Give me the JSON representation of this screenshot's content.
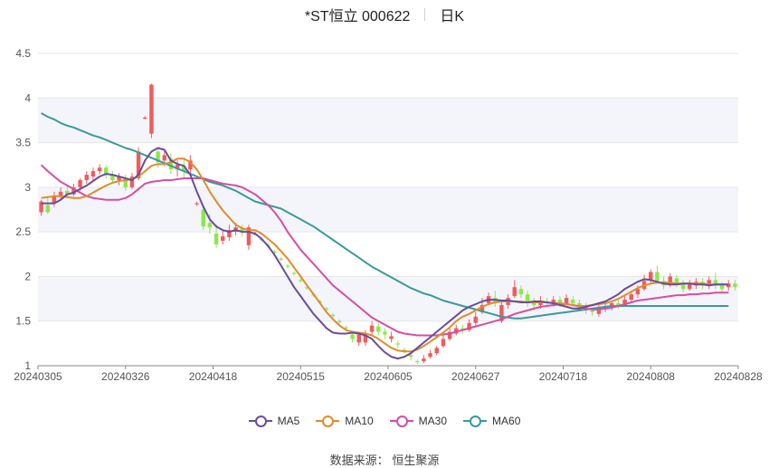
{
  "title": "*ST恒立 000622",
  "subtitle": "日K",
  "source_label": "数据来源：",
  "source_name": "恒生聚源",
  "colors": {
    "up": "#ef5c5c",
    "down": "#8ee64c",
    "ma5": "#6a4c9c",
    "ma10": "#e08c2c",
    "ma30": "#d44fa6",
    "ma60": "#3a9a9a",
    "grid": "#e6e6e6",
    "band": "#f4f5fb"
  },
  "chart_data": {
    "type": "candlestick",
    "ylim": [
      1,
      4.5
    ],
    "yticks": [
      "1",
      "1.5",
      "2",
      "2.5",
      "3",
      "3.5",
      "4",
      "4.5"
    ],
    "xlabels": [
      "20240305",
      "20240326",
      "20240418",
      "20240515",
      "20240605",
      "20240627",
      "20240718",
      "20240808",
      "20240828"
    ],
    "legend": [
      "MA5",
      "MA10",
      "MA30",
      "MA60"
    ],
    "candles": [
      [
        2.72,
        2.84,
        2.86,
        2.68
      ],
      [
        2.8,
        2.72,
        2.88,
        2.7
      ],
      [
        2.82,
        2.9,
        2.95,
        2.78
      ],
      [
        2.9,
        2.95,
        3.0,
        2.86
      ],
      [
        2.96,
        2.92,
        3.03,
        2.88
      ],
      [
        2.92,
        3.0,
        3.04,
        2.9
      ],
      [
        3.0,
        3.08,
        3.1,
        2.96
      ],
      [
        3.08,
        3.14,
        3.18,
        3.04
      ],
      [
        3.12,
        3.18,
        3.22,
        3.08
      ],
      [
        3.18,
        3.22,
        3.26,
        3.14
      ],
      [
        3.22,
        3.14,
        3.25,
        3.1
      ],
      [
        3.14,
        3.08,
        3.18,
        3.04
      ],
      [
        3.08,
        3.12,
        3.16,
        3.02
      ],
      [
        3.1,
        3.0,
        3.14,
        2.96
      ],
      [
        3.0,
        3.12,
        3.16,
        2.98
      ],
      [
        3.1,
        3.4,
        3.45,
        3.08
      ],
      [
        3.78,
        3.78,
        3.8,
        3.76
      ],
      [
        3.6,
        4.15,
        4.16,
        3.55
      ],
      [
        3.4,
        3.28,
        3.45,
        3.22
      ],
      [
        3.3,
        3.36,
        3.42,
        3.24
      ],
      [
        3.32,
        3.2,
        3.38,
        3.15
      ],
      [
        3.2,
        3.25,
        3.3,
        3.12
      ],
      [
        3.24,
        3.18,
        3.32,
        3.1
      ],
      [
        3.2,
        3.3,
        3.36,
        3.15
      ],
      [
        2.82,
        2.82,
        2.84,
        2.79
      ],
      [
        2.75,
        2.56,
        2.78,
        2.52
      ],
      [
        2.6,
        2.55,
        2.7,
        2.48
      ],
      [
        2.48,
        2.36,
        2.58,
        2.32
      ],
      [
        2.4,
        2.45,
        2.52,
        2.36
      ],
      [
        2.44,
        2.52,
        2.58,
        2.4
      ],
      [
        2.5,
        2.55,
        2.6,
        2.46
      ],
      [
        2.54,
        2.5,
        2.58,
        2.45
      ],
      [
        2.35,
        2.55,
        2.58,
        2.3
      ],
      [
        2.48,
        2.48,
        2.5,
        2.46
      ],
      [
        2.42,
        2.41,
        2.44,
        2.39
      ],
      [
        2.35,
        2.34,
        2.37,
        2.32
      ],
      [
        2.28,
        2.27,
        2.3,
        2.25
      ],
      [
        2.2,
        2.19,
        2.22,
        2.17
      ],
      [
        2.12,
        2.11,
        2.14,
        2.09
      ],
      [
        2.04,
        2.03,
        2.06,
        2.01
      ],
      [
        1.96,
        1.95,
        1.98,
        1.93
      ],
      [
        1.88,
        1.87,
        1.9,
        1.85
      ],
      [
        1.8,
        1.79,
        1.82,
        1.77
      ],
      [
        1.72,
        1.71,
        1.74,
        1.69
      ],
      [
        1.64,
        1.63,
        1.66,
        1.61
      ],
      [
        1.57,
        1.56,
        1.59,
        1.54
      ],
      [
        1.5,
        1.49,
        1.52,
        1.47
      ],
      [
        1.43,
        1.42,
        1.45,
        1.4
      ],
      [
        1.35,
        1.3,
        1.38,
        1.26
      ],
      [
        1.26,
        1.35,
        1.38,
        1.22
      ],
      [
        1.26,
        1.35,
        1.4,
        1.22
      ],
      [
        1.38,
        1.45,
        1.5,
        1.35
      ],
      [
        1.44,
        1.38,
        1.48,
        1.34
      ],
      [
        1.38,
        1.35,
        1.42,
        1.3
      ],
      [
        1.3,
        1.33,
        1.38,
        1.26
      ],
      [
        1.25,
        1.24,
        1.28,
        1.2
      ],
      [
        1.18,
        1.17,
        1.2,
        1.14
      ],
      [
        1.12,
        1.1,
        1.14,
        1.06
      ],
      [
        1.05,
        1.04,
        1.07,
        1.02
      ],
      [
        1.05,
        1.08,
        1.12,
        1.03
      ],
      [
        1.1,
        1.14,
        1.18,
        1.08
      ],
      [
        1.14,
        1.2,
        1.22,
        1.12
      ],
      [
        1.22,
        1.3,
        1.34,
        1.2
      ],
      [
        1.3,
        1.38,
        1.42,
        1.28
      ],
      [
        1.36,
        1.42,
        1.46,
        1.34
      ],
      [
        1.42,
        1.4,
        1.46,
        1.36
      ],
      [
        1.4,
        1.48,
        1.52,
        1.38
      ],
      [
        1.48,
        1.55,
        1.6,
        1.45
      ],
      [
        1.6,
        1.68,
        1.76,
        1.58
      ],
      [
        1.7,
        1.78,
        1.82,
        1.68
      ],
      [
        1.76,
        1.7,
        1.84,
        1.66
      ],
      [
        1.5,
        1.68,
        1.72,
        1.48
      ],
      [
        1.68,
        1.76,
        1.8,
        1.64
      ],
      [
        1.78,
        1.88,
        1.96,
        1.76
      ],
      [
        1.86,
        1.8,
        1.9,
        1.76
      ],
      [
        1.8,
        1.7,
        1.84,
        1.66
      ],
      [
        1.72,
        1.68,
        1.76,
        1.62
      ],
      [
        1.68,
        1.72,
        1.78,
        1.64
      ],
      [
        1.72,
        1.7,
        1.76,
        1.66
      ],
      [
        1.7,
        1.74,
        1.78,
        1.66
      ],
      [
        1.74,
        1.7,
        1.78,
        1.66
      ],
      [
        1.7,
        1.76,
        1.8,
        1.68
      ],
      [
        1.74,
        1.7,
        1.78,
        1.66
      ],
      [
        1.7,
        1.66,
        1.74,
        1.62
      ],
      [
        1.66,
        1.62,
        1.7,
        1.58
      ],
      [
        1.62,
        1.6,
        1.66,
        1.56
      ],
      [
        1.58,
        1.65,
        1.68,
        1.55
      ],
      [
        1.64,
        1.66,
        1.7,
        1.6
      ],
      [
        1.66,
        1.7,
        1.72,
        1.62
      ],
      [
        1.7,
        1.68,
        1.74,
        1.64
      ],
      [
        1.68,
        1.74,
        1.78,
        1.66
      ],
      [
        1.74,
        1.8,
        1.84,
        1.7
      ],
      [
        1.8,
        1.86,
        1.9,
        1.76
      ],
      [
        1.86,
        1.95,
        2.02,
        1.84
      ],
      [
        1.96,
        2.05,
        2.08,
        1.92
      ],
      [
        2.05,
        1.95,
        2.12,
        1.92
      ],
      [
        1.95,
        1.9,
        2.0,
        1.86
      ],
      [
        1.92,
        2.0,
        2.04,
        1.88
      ],
      [
        1.98,
        1.92,
        2.02,
        1.88
      ],
      [
        1.92,
        1.86,
        1.96,
        1.82
      ],
      [
        1.86,
        1.92,
        1.96,
        1.84
      ],
      [
        1.9,
        1.94,
        1.98,
        1.86
      ],
      [
        1.94,
        1.9,
        1.98,
        1.86
      ],
      [
        1.9,
        1.96,
        2.0,
        1.86
      ],
      [
        1.96,
        1.9,
        2.04,
        1.86
      ],
      [
        1.9,
        1.86,
        1.94,
        1.82
      ],
      [
        1.88,
        1.92,
        1.96,
        1.84
      ],
      [
        1.92,
        1.88,
        1.96,
        1.84
      ]
    ],
    "ma5": [
      2.82,
      2.82,
      2.82,
      2.86,
      2.92,
      2.94,
      2.98,
      3.02,
      3.07,
      3.12,
      3.15,
      3.14,
      3.12,
      3.1,
      3.08,
      3.14,
      3.3,
      3.4,
      3.44,
      3.42,
      3.3,
      3.26,
      3.24,
      3.14,
      2.95,
      2.78,
      2.64,
      2.56,
      2.52,
      2.5,
      2.52,
      2.5,
      2.5,
      2.48,
      2.42,
      2.34,
      2.24,
      2.12,
      2.0,
      1.88,
      1.78,
      1.68,
      1.58,
      1.5,
      1.42,
      1.37,
      1.36,
      1.36,
      1.37,
      1.36,
      1.34,
      1.3,
      1.22,
      1.15,
      1.1,
      1.08,
      1.1,
      1.14,
      1.2,
      1.26,
      1.32,
      1.38,
      1.44,
      1.5,
      1.56,
      1.62,
      1.66,
      1.69,
      1.72,
      1.74,
      1.74,
      1.73,
      1.73,
      1.72,
      1.71,
      1.71,
      1.72,
      1.72,
      1.71,
      1.7,
      1.68,
      1.66,
      1.64,
      1.64,
      1.66,
      1.68,
      1.7,
      1.72,
      1.76,
      1.8,
      1.86,
      1.9,
      1.94,
      1.97,
      1.96,
      1.94,
      1.92,
      1.91,
      1.91,
      1.92,
      1.92,
      1.91,
      1.91,
      1.9,
      1.91,
      1.91,
      1.91
    ],
    "ma10": [
      2.88,
      2.89,
      2.9,
      2.9,
      2.89,
      2.88,
      2.88,
      2.9,
      2.94,
      2.98,
      3.02,
      3.05,
      3.07,
      3.08,
      3.09,
      3.12,
      3.18,
      3.24,
      3.26,
      3.26,
      3.28,
      3.32,
      3.32,
      3.28,
      3.2,
      3.08,
      2.95,
      2.84,
      2.74,
      2.66,
      2.58,
      2.54,
      2.52,
      2.52,
      2.48,
      2.42,
      2.36,
      2.28,
      2.2,
      2.1,
      2.0,
      1.9,
      1.8,
      1.7,
      1.6,
      1.52,
      1.45,
      1.4,
      1.38,
      1.37,
      1.36,
      1.34,
      1.3,
      1.25,
      1.2,
      1.17,
      1.16,
      1.16,
      1.18,
      1.22,
      1.27,
      1.32,
      1.37,
      1.43,
      1.5,
      1.55,
      1.58,
      1.62,
      1.66,
      1.69,
      1.71,
      1.72,
      1.72,
      1.72,
      1.72,
      1.71,
      1.71,
      1.71,
      1.71,
      1.7,
      1.7,
      1.69,
      1.68,
      1.67,
      1.67,
      1.68,
      1.69,
      1.7,
      1.72,
      1.75,
      1.79,
      1.83,
      1.87,
      1.9,
      1.92,
      1.93,
      1.93,
      1.93,
      1.92,
      1.92,
      1.92,
      1.92,
      1.92,
      1.91,
      1.91,
      1.91,
      1.91
    ],
    "ma30": [
      3.25,
      3.18,
      3.12,
      3.06,
      3.02,
      2.98,
      2.94,
      2.9,
      2.88,
      2.87,
      2.86,
      2.86,
      2.86,
      2.88,
      2.92,
      2.98,
      3.04,
      3.06,
      3.07,
      3.08,
      3.08,
      3.09,
      3.1,
      3.1,
      3.1,
      3.1,
      3.08,
      3.06,
      3.04,
      3.03,
      3.02,
      3.0,
      2.96,
      2.92,
      2.86,
      2.8,
      2.72,
      2.62,
      2.5,
      2.4,
      2.3,
      2.22,
      2.14,
      2.06,
      1.98,
      1.9,
      1.84,
      1.78,
      1.72,
      1.66,
      1.6,
      1.54,
      1.5,
      1.46,
      1.42,
      1.38,
      1.36,
      1.35,
      1.34,
      1.34,
      1.34,
      1.34,
      1.35,
      1.36,
      1.38,
      1.4,
      1.42,
      1.44,
      1.46,
      1.48,
      1.5,
      1.52,
      1.55,
      1.58,
      1.6,
      1.62,
      1.64,
      1.66,
      1.67,
      1.68,
      1.69,
      1.69,
      1.68,
      1.66,
      1.64,
      1.63,
      1.63,
      1.64,
      1.65,
      1.67,
      1.69,
      1.71,
      1.73,
      1.74,
      1.75,
      1.76,
      1.77,
      1.78,
      1.79,
      1.79,
      1.8,
      1.8,
      1.81,
      1.81,
      1.82,
      1.82,
      1.82
    ],
    "ma60": [
      3.83,
      3.79,
      3.76,
      3.72,
      3.69,
      3.67,
      3.64,
      3.61,
      3.58,
      3.56,
      3.53,
      3.5,
      3.47,
      3.44,
      3.42,
      3.39,
      3.36,
      3.33,
      3.3,
      3.27,
      3.24,
      3.21,
      3.18,
      3.15,
      3.12,
      3.09,
      3.06,
      3.04,
      3.02,
      2.99,
      2.96,
      2.92,
      2.88,
      2.84,
      2.82,
      2.8,
      2.78,
      2.76,
      2.72,
      2.68,
      2.64,
      2.6,
      2.56,
      2.51,
      2.46,
      2.41,
      2.36,
      2.31,
      2.26,
      2.21,
      2.16,
      2.11,
      2.07,
      2.03,
      1.99,
      1.95,
      1.91,
      1.87,
      1.84,
      1.81,
      1.79,
      1.76,
      1.73,
      1.71,
      1.69,
      1.67,
      1.65,
      1.63,
      1.61,
      1.59,
      1.57,
      1.55,
      1.54,
      1.53,
      1.53,
      1.54,
      1.55,
      1.56,
      1.57,
      1.58,
      1.59,
      1.6,
      1.61,
      1.62,
      1.63,
      1.64,
      1.65,
      1.66,
      1.67,
      1.67,
      1.67,
      1.67,
      1.67,
      1.67,
      1.67,
      1.67,
      1.67,
      1.67,
      1.67,
      1.67,
      1.67,
      1.67,
      1.67,
      1.67,
      1.67,
      1.67,
      1.67
    ]
  }
}
